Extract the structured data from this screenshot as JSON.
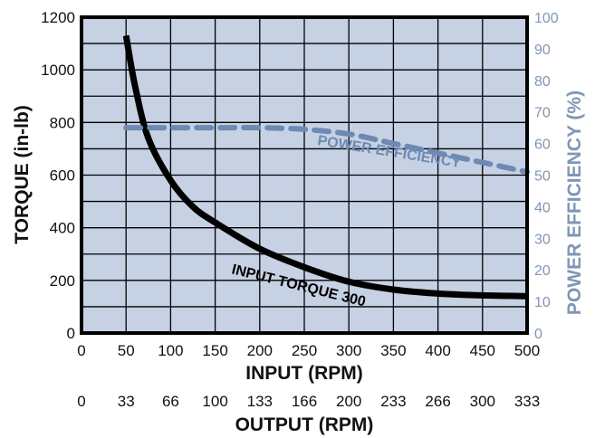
{
  "chart_data": {
    "type": "line",
    "xlabel": "INPUT (RPM)",
    "x2label": "OUTPUT (RPM)",
    "ylabel": "TORQUE (in-lb)",
    "y2label": "POWER EFFICIENCY (%)",
    "xlim": [
      0,
      500
    ],
    "ylim": [
      0,
      1200
    ],
    "y2lim": [
      0,
      100
    ],
    "grid": true,
    "x_ticks": [
      "0",
      "50",
      "100",
      "150",
      "200",
      "250",
      "300",
      "350",
      "400",
      "450",
      "500"
    ],
    "x2_ticks": [
      "0",
      "33",
      "66",
      "100",
      "133",
      "166",
      "200",
      "233",
      "266",
      "300",
      "333"
    ],
    "y_ticks": [
      "0",
      "200",
      "400",
      "600",
      "800",
      "1000",
      "1200"
    ],
    "y2_ticks": [
      "0",
      "10",
      "20",
      "30",
      "40",
      "50",
      "60",
      "70",
      "80",
      "90",
      "100"
    ],
    "series": [
      {
        "name": "INPUT TORQUE 300",
        "axis": "left",
        "style": "solid",
        "color": "#000000",
        "x": [
          50,
          60,
          75,
          100,
          125,
          150,
          200,
          250,
          300,
          350,
          400,
          450,
          500
        ],
        "y": [
          1130,
          940,
          740,
          580,
          480,
          420,
          320,
          250,
          195,
          165,
          150,
          143,
          140
        ]
      },
      {
        "name": "POWER EFFICIENCY",
        "axis": "right",
        "style": "dashed",
        "color": "#6e89b4",
        "x": [
          50,
          100,
          150,
          200,
          250,
          300,
          350,
          400,
          450,
          500
        ],
        "y": [
          65,
          65,
          65,
          65,
          64.5,
          63,
          60,
          57,
          54,
          51
        ]
      }
    ]
  }
}
